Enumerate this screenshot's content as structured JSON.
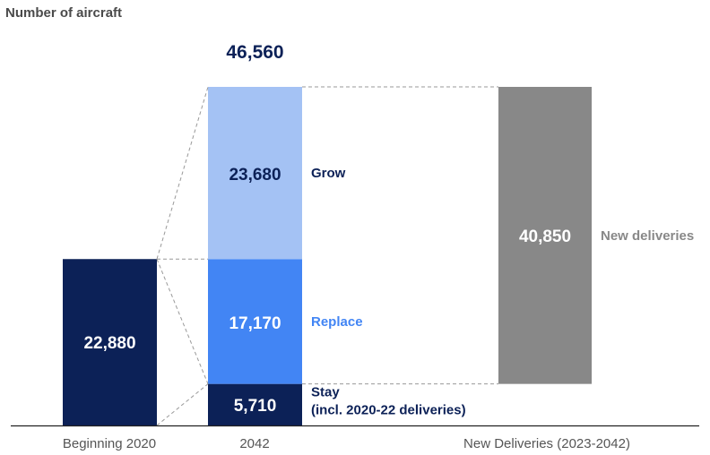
{
  "chart_data": {
    "type": "bar",
    "ylabel": "Number of aircraft",
    "categories": [
      "Beginning 2020",
      "2042",
      "New Deliveries (2023-2042)"
    ],
    "bars": [
      {
        "category": "Beginning 2020",
        "segments": [
          {
            "name": "",
            "value": 22880,
            "label": "22,880",
            "color": "#0c2157"
          }
        ]
      },
      {
        "category": "2042",
        "total": 46560,
        "total_label": "46,560",
        "segments": [
          {
            "name": "Stay",
            "name_line2": "(incl. 2020-22 deliveries)",
            "value": 5710,
            "label": "5,710",
            "color": "#0c2157",
            "name_color": "#0c2157"
          },
          {
            "name": "Replace",
            "value": 17170,
            "label": "17,170",
            "color": "#4285f4",
            "name_color": "#4285f4"
          },
          {
            "name": "Grow",
            "value": 23680,
            "label": "23,680",
            "color": "#a4c2f4",
            "name_color": "#0c2157"
          }
        ]
      },
      {
        "category": "New Deliveries (2023-2042)",
        "segments": [
          {
            "name": "New deliveries",
            "value": 40850,
            "label": "40,850",
            "color": "#888888",
            "name_color": "#888888"
          }
        ]
      }
    ],
    "grid": false,
    "legend": "none"
  }
}
